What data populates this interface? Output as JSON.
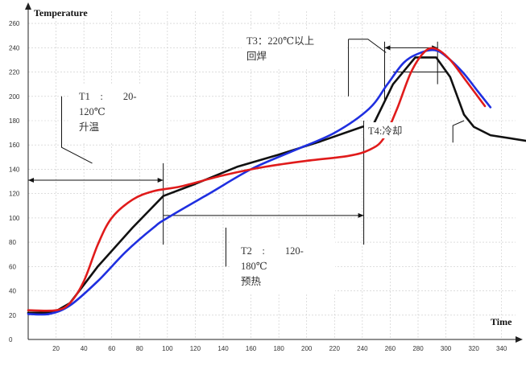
{
  "chart_data": {
    "type": "line",
    "title": "",
    "xlabel": "Time",
    "ylabel": "Temperature",
    "xlim": [
      0,
      350
    ],
    "ylim": [
      0,
      270
    ],
    "x_ticks": [
      20,
      40,
      60,
      80,
      100,
      120,
      140,
      160,
      180,
      200,
      220,
      240,
      260,
      280,
      300,
      320,
      340
    ],
    "y_ticks": [
      0,
      20,
      40,
      60,
      80,
      100,
      120,
      140,
      160,
      180,
      200,
      220,
      240,
      260
    ],
    "grid": true,
    "series": [
      {
        "color": "#111111",
        "points": [
          [
            0,
            22
          ],
          [
            18,
            22
          ],
          [
            30,
            30
          ],
          [
            50,
            60
          ],
          [
            75,
            92
          ],
          [
            97,
            118
          ],
          [
            120,
            128
          ],
          [
            150,
            142
          ],
          [
            180,
            152
          ],
          [
            210,
            163
          ],
          [
            240,
            175
          ],
          [
            248,
            177
          ],
          [
            262,
            210
          ],
          [
            278,
            232
          ],
          [
            293,
            232
          ],
          [
            303,
            216
          ],
          [
            313,
            185
          ],
          [
            320,
            175
          ],
          [
            332,
            168
          ],
          [
            360,
            163
          ]
        ]
      },
      {
        "color": "#1f2fe0",
        "points": [
          [
            0,
            21
          ],
          [
            15,
            21
          ],
          [
            30,
            28
          ],
          [
            50,
            48
          ],
          [
            70,
            72
          ],
          [
            90,
            92
          ],
          [
            100,
            100
          ],
          [
            130,
            120
          ],
          [
            160,
            140
          ],
          [
            190,
            155
          ],
          [
            220,
            170
          ],
          [
            245,
            190
          ],
          [
            258,
            210
          ],
          [
            270,
            228
          ],
          [
            282,
            236
          ],
          [
            292,
            238
          ],
          [
            300,
            233
          ],
          [
            312,
            220
          ],
          [
            323,
            204
          ],
          [
            332,
            191
          ]
        ]
      },
      {
        "color": "#e01b1b",
        "points": [
          [
            0,
            24
          ],
          [
            20,
            24
          ],
          [
            30,
            30
          ],
          [
            40,
            48
          ],
          [
            50,
            78
          ],
          [
            60,
            100
          ],
          [
            75,
            115
          ],
          [
            90,
            122
          ],
          [
            110,
            126
          ],
          [
            140,
            135
          ],
          [
            170,
            142
          ],
          [
            200,
            147
          ],
          [
            230,
            151
          ],
          [
            245,
            156
          ],
          [
            255,
            165
          ],
          [
            265,
            190
          ],
          [
            275,
            220
          ],
          [
            285,
            237
          ],
          [
            293,
            239
          ],
          [
            303,
            230
          ],
          [
            315,
            212
          ],
          [
            328,
            192
          ]
        ]
      }
    ],
    "annotations": [
      {
        "lines": [
          "T1　:　　20-",
          "120℃",
          "升温"
        ]
      },
      {
        "lines": [
          "T2　:　　120-",
          "180℃",
          "预热"
        ]
      },
      {
        "lines": [
          "T3：220℃以上",
          "回焊"
        ]
      },
      {
        "lines": [
          "T4:冷却"
        ]
      }
    ]
  }
}
